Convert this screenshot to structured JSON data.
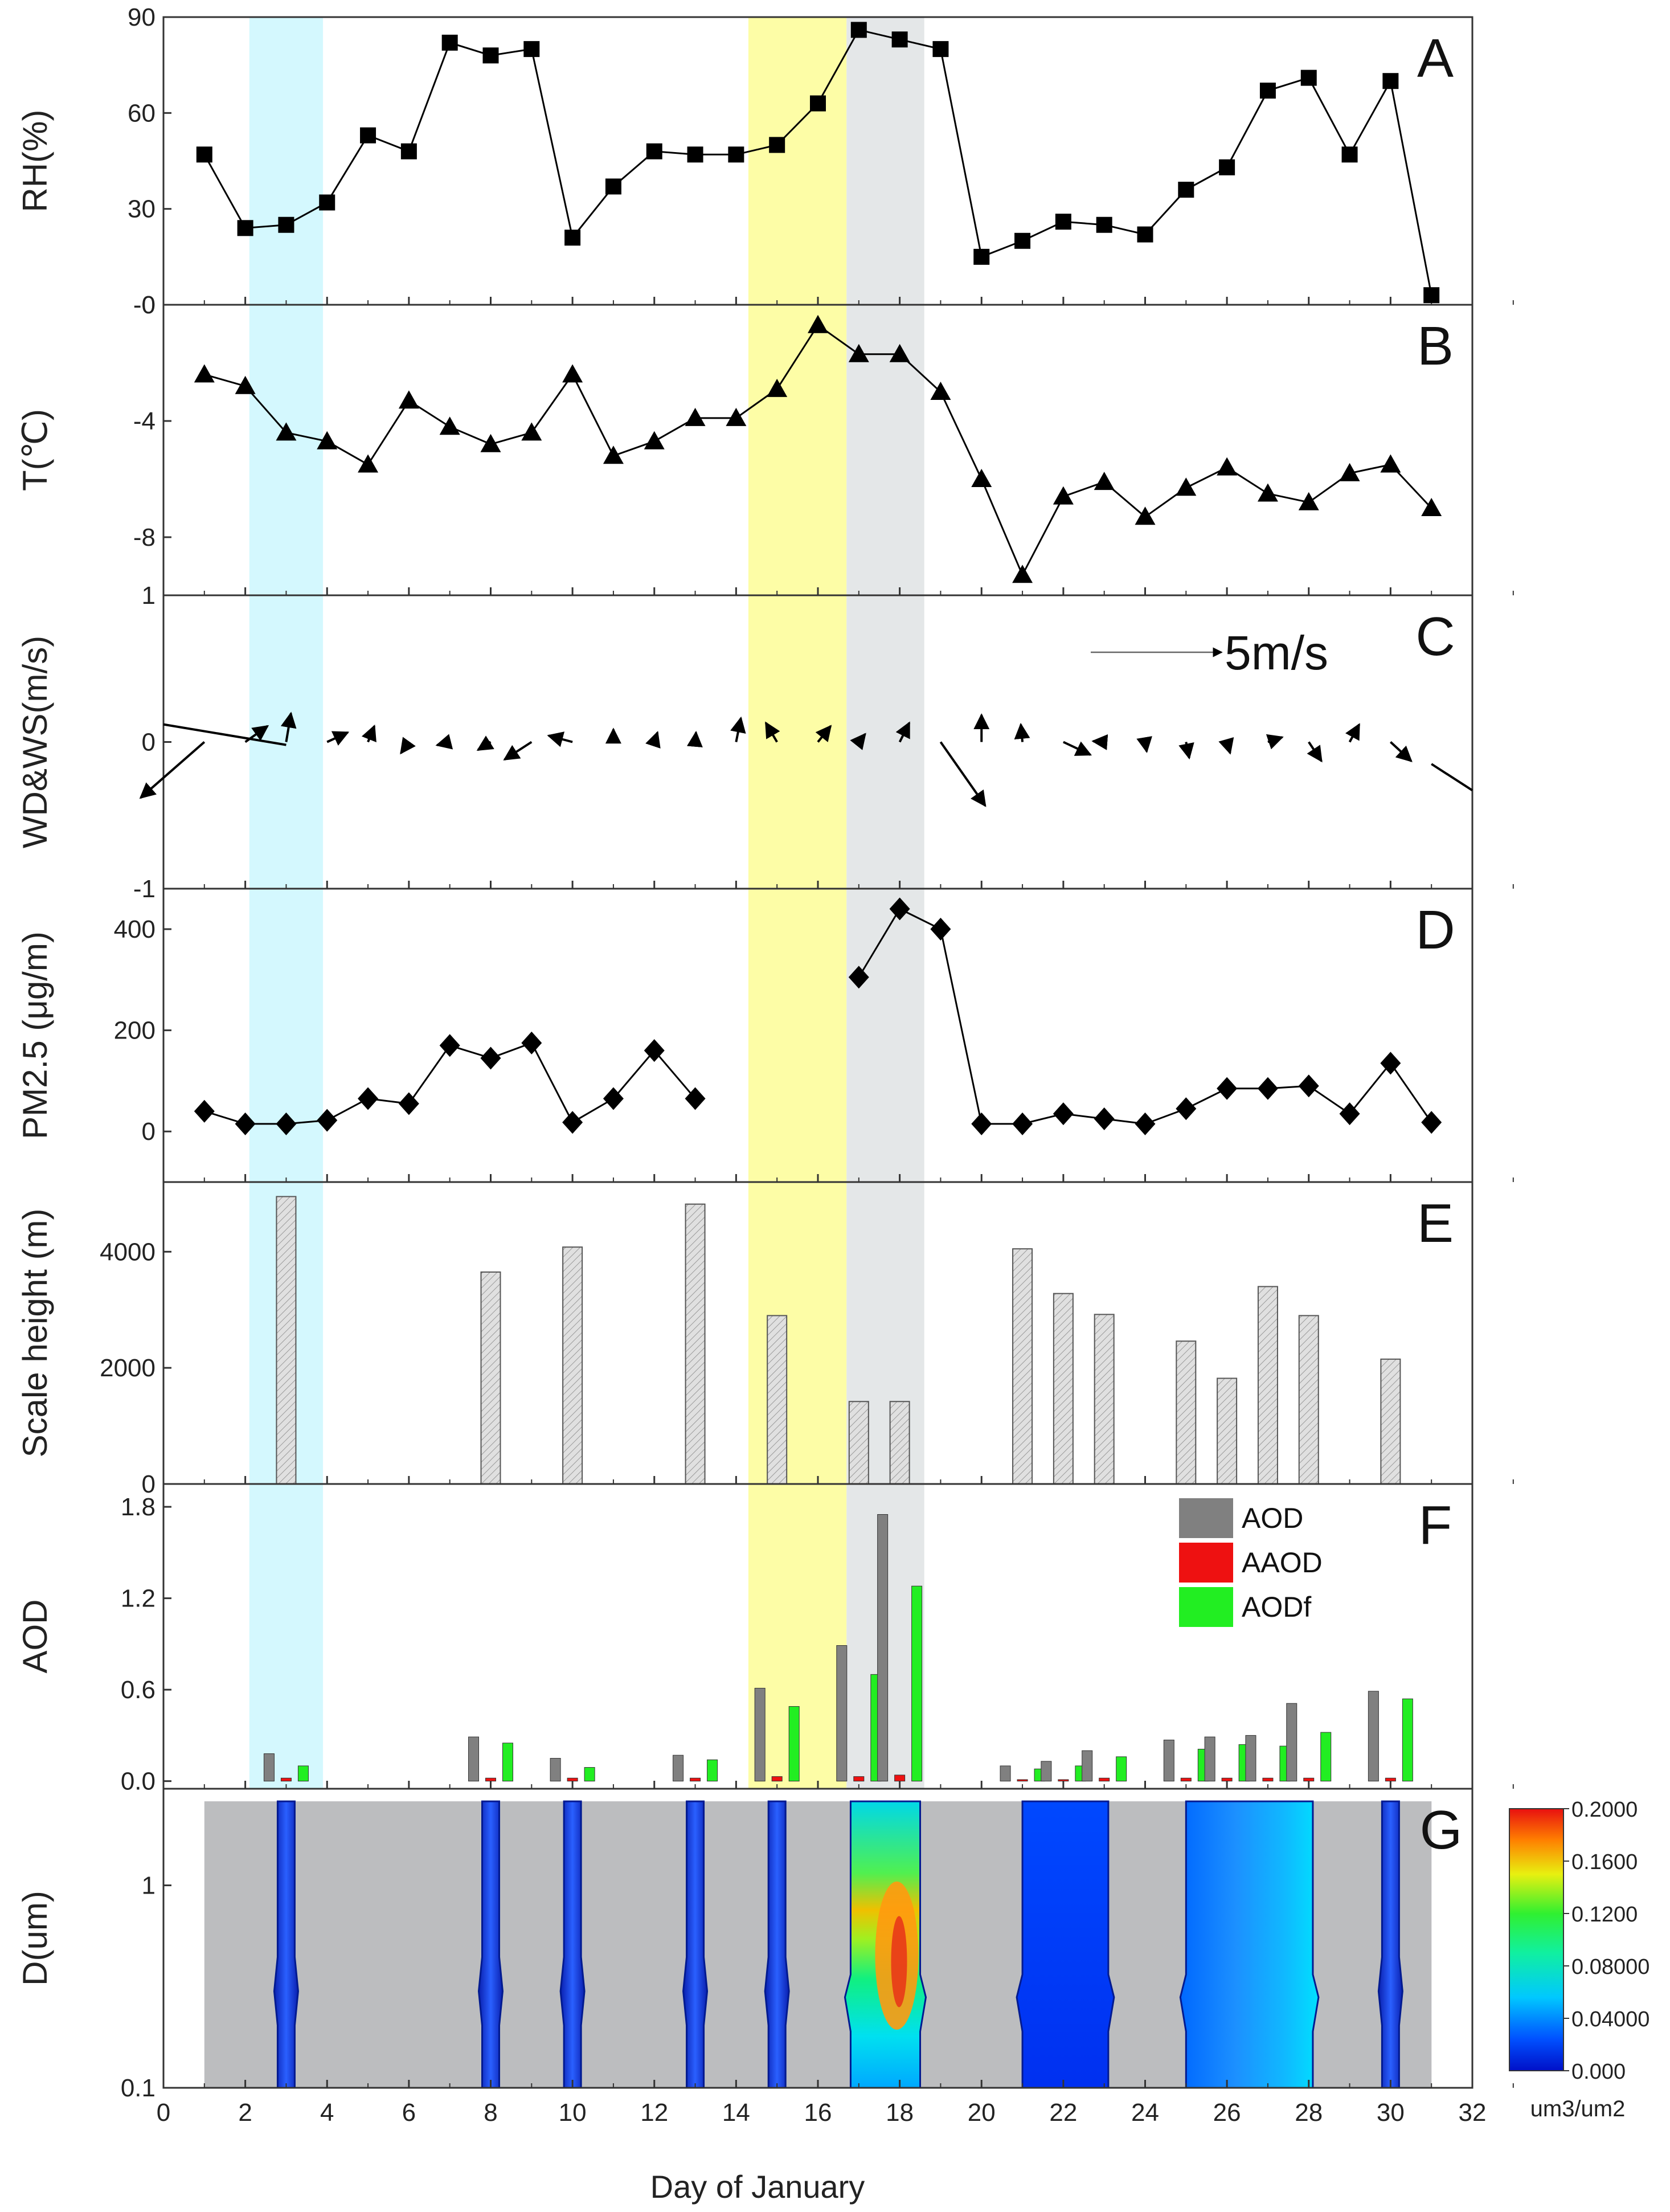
{
  "chart_data": {
    "type": "multi-panel",
    "x": {
      "label": "Day of January",
      "lim": [
        0,
        32
      ],
      "ticks": [
        0,
        2,
        4,
        6,
        8,
        10,
        12,
        14,
        16,
        18,
        20,
        22,
        24,
        26,
        28,
        30,
        32
      ]
    },
    "highlights": [
      {
        "name": "cyan-band",
        "from": 2.1,
        "to": 3.9,
        "color": "#d4f8fe"
      },
      {
        "name": "yellow-band",
        "from": 14.3,
        "to": 16.7,
        "color": "#fdfda6"
      },
      {
        "name": "grey-band",
        "from": 16.7,
        "to": 18.6,
        "color": "#e4e7e8"
      }
    ],
    "panels": [
      {
        "id": "A",
        "type": "line",
        "marker": "square",
        "ylabel": "RH(%)",
        "ylim": [
          0,
          90
        ],
        "yticks": [
          0,
          30,
          60,
          90
        ],
        "points": [
          [
            1,
            47
          ],
          [
            2,
            24
          ],
          [
            3,
            25
          ],
          [
            4,
            32
          ],
          [
            5,
            53
          ],
          [
            6,
            48
          ],
          [
            7,
            82
          ],
          [
            8,
            78
          ],
          [
            9,
            80
          ],
          [
            10,
            21
          ],
          [
            11,
            37
          ],
          [
            12,
            48
          ],
          [
            13,
            47
          ],
          [
            14,
            47
          ],
          [
            15,
            50
          ],
          [
            16,
            63
          ],
          [
            17,
            86
          ],
          [
            18,
            83
          ],
          [
            19,
            80
          ],
          [
            20,
            15
          ],
          [
            21,
            20
          ],
          [
            22,
            26
          ],
          [
            23,
            25
          ],
          [
            24,
            22
          ],
          [
            25,
            36
          ],
          [
            26,
            43
          ],
          [
            27,
            67
          ],
          [
            28,
            71
          ],
          [
            29,
            47
          ],
          [
            30,
            70
          ],
          [
            31,
            3
          ]
        ]
      },
      {
        "id": "B",
        "type": "line",
        "marker": "triangle",
        "ylabel": "T(℃)",
        "ylim": [
          -10,
          0
        ],
        "yticks": [
          0,
          -4,
          -8
        ],
        "ytick_labels": [
          "-0",
          "-4",
          "-8"
        ],
        "points": [
          [
            1,
            -2.4
          ],
          [
            2,
            -2.8
          ],
          [
            3,
            -4.4
          ],
          [
            4,
            -4.7
          ],
          [
            5,
            -5.5
          ],
          [
            6,
            -3.3
          ],
          [
            7,
            -4.2
          ],
          [
            8,
            -4.8
          ],
          [
            9,
            -4.4
          ],
          [
            10,
            -2.4
          ],
          [
            11,
            -5.2
          ],
          [
            12,
            -4.7
          ],
          [
            13,
            -3.9
          ],
          [
            14,
            -3.9
          ],
          [
            15,
            -2.9
          ],
          [
            16,
            -0.7
          ],
          [
            17,
            -1.7
          ],
          [
            18,
            -1.7
          ],
          [
            19,
            -3.0
          ],
          [
            20,
            -6.0
          ],
          [
            21,
            -9.3
          ],
          [
            22,
            -6.6
          ],
          [
            23,
            -6.1
          ],
          [
            24,
            -7.3
          ],
          [
            25,
            -6.3
          ],
          [
            26,
            -5.6
          ],
          [
            27,
            -6.5
          ],
          [
            28,
            -6.8
          ],
          [
            29,
            -5.8
          ],
          [
            30,
            -5.5
          ],
          [
            31,
            -7.0
          ]
        ]
      },
      {
        "id": "C",
        "type": "vector",
        "ylabel": "WD&WS(m/s)",
        "ylim": [
          -1,
          1
        ],
        "yticks": [
          1,
          0,
          -1
        ],
        "scale_label": "5m/s",
        "vectors": [
          [
            1,
            -4,
            -3.5
          ],
          [
            2,
            1.4,
            1.0
          ],
          [
            3,
            0.3,
            1.8
          ],
          [
            4,
            1.3,
            0.6
          ],
          [
            5,
            0.4,
            1.0
          ],
          [
            6,
            -0.5,
            -0.7
          ],
          [
            7,
            -0.8,
            -0.2
          ],
          [
            8,
            -0.8,
            -0.5
          ],
          [
            9,
            -1.7,
            -1.1
          ],
          [
            10,
            -1.5,
            0.4
          ],
          [
            11,
            0,
            0.8
          ],
          [
            12,
            0.2,
            0.6
          ],
          [
            13,
            0.05,
            0.6
          ],
          [
            14,
            0.3,
            1.5
          ],
          [
            15,
            -0.7,
            1.2
          ],
          [
            16,
            0.8,
            1.0
          ],
          [
            17,
            0.4,
            0.5
          ],
          [
            18,
            0.6,
            1.2
          ],
          [
            19,
            2.8,
            -4.0
          ],
          [
            20,
            0,
            1.7
          ],
          [
            21,
            -0.1,
            1.1
          ],
          [
            22,
            1.7,
            -0.8
          ],
          [
            23,
            -0.7,
            0.05
          ],
          [
            24,
            0.1,
            -0.6
          ],
          [
            25,
            0.2,
            -1.0
          ],
          [
            26,
            0.2,
            -0.7
          ],
          [
            27,
            0.9,
            0.3
          ],
          [
            28,
            0.8,
            -1.2
          ],
          [
            29,
            0.6,
            1.1
          ],
          [
            30,
            1.3,
            -1.2
          ]
        ],
        "extra_lines": [
          [
            0,
            0.12,
            3,
            -0.02
          ],
          [
            31,
            -0.15,
            32,
            -0.33
          ]
        ]
      },
      {
        "id": "D",
        "type": "line",
        "marker": "diamond",
        "ylabel": "PM2.5 (μg/m)",
        "ylim": [
          -100,
          480
        ],
        "yticks": [
          0,
          200,
          400
        ],
        "segments": [
          [
            [
              1,
              40
            ],
            [
              2,
              15
            ],
            [
              3,
              15
            ],
            [
              4,
              22
            ],
            [
              5,
              65
            ],
            [
              6,
              55
            ],
            [
              7,
              170
            ],
            [
              8,
              145
            ],
            [
              9,
              175
            ],
            [
              10,
              18
            ],
            [
              11,
              65
            ],
            [
              12,
              160
            ],
            [
              13,
              65
            ]
          ],
          [
            [
              17,
              305
            ],
            [
              18,
              440
            ],
            [
              19,
              400
            ],
            [
              20,
              15
            ],
            [
              21,
              15
            ],
            [
              22,
              35
            ],
            [
              23,
              25
            ],
            [
              24,
              15
            ],
            [
              25,
              45
            ],
            [
              26,
              85
            ],
            [
              27,
              85
            ],
            [
              28,
              90
            ],
            [
              29,
              35
            ],
            [
              30,
              135
            ],
            [
              31,
              18
            ]
          ]
        ]
      },
      {
        "id": "E",
        "type": "bar",
        "pattern": "hatched",
        "ylabel": "Scale height (m)",
        "ylim": [
          0,
          5200
        ],
        "yticks": [
          0,
          2000,
          4000
        ],
        "bars": [
          [
            3,
            4950
          ],
          [
            8,
            3650
          ],
          [
            10,
            4080
          ],
          [
            13,
            4820
          ],
          [
            15,
            2900
          ],
          [
            17,
            1420
          ],
          [
            18,
            1420
          ],
          [
            21,
            4050
          ],
          [
            22,
            3280
          ],
          [
            23,
            2920
          ],
          [
            25,
            2460
          ],
          [
            26,
            1820
          ],
          [
            27,
            3400
          ],
          [
            28,
            2900
          ],
          [
            30,
            2150
          ]
        ]
      },
      {
        "id": "F",
        "type": "grouped-bar",
        "ylabel": "AOD",
        "ylim": [
          -0.05,
          1.95
        ],
        "yticks": [
          0.0,
          0.6,
          1.2,
          1.8
        ],
        "ytick_labels": [
          "0.0",
          "0.6",
          "1.2",
          "1.8"
        ],
        "days": [
          3,
          8,
          10,
          13,
          15,
          17,
          18,
          21,
          22,
          23,
          25,
          26,
          27,
          28,
          30
        ],
        "series": [
          {
            "name": "AOD",
            "color": "#808080",
            "values": [
              0.18,
              0.29,
              0.15,
              0.17,
              0.61,
              0.89,
              1.75,
              0.1,
              0.13,
              0.2,
              0.27,
              0.29,
              0.3,
              0.51,
              0.59
            ]
          },
          {
            "name": "AAOD",
            "color": "#ee1111",
            "values": [
              0.02,
              0.02,
              0.02,
              0.02,
              0.03,
              0.03,
              0.04,
              0.01,
              0.01,
              0.02,
              0.02,
              0.02,
              0.02,
              0.02,
              0.02
            ]
          },
          {
            "name": "AODf",
            "color": "#22ee22",
            "values": [
              0.1,
              0.25,
              0.09,
              0.14,
              0.49,
              0.7,
              1.28,
              0.08,
              0.1,
              0.16,
              0.21,
              0.24,
              0.23,
              0.32,
              0.54
            ]
          }
        ]
      },
      {
        "id": "G",
        "type": "heatmap",
        "ylabel": "D(um)",
        "yscale": "log",
        "ylim": [
          0.1,
          3.0
        ],
        "yticks": [
          0.1,
          1
        ],
        "ytick_labels": [
          "0.1",
          "1"
        ],
        "background_range": [
          1,
          31
        ],
        "columns": [
          {
            "day": 3,
            "level": 0.004
          },
          {
            "day": 8,
            "level": 0.004
          },
          {
            "day": 10,
            "level": 0.004
          },
          {
            "day": 13,
            "level": 0.004
          },
          {
            "day": 15,
            "level": 0.012
          },
          {
            "from": 16.8,
            "to": 18.5,
            "level": 0.12
          },
          {
            "from": 21,
            "to": 23.1,
            "level": 0.015
          },
          {
            "from": 25,
            "to": 28.1,
            "level": 0.03
          },
          {
            "day": 30,
            "level": 0.008
          }
        ],
        "colorbar": {
          "min": 0.0,
          "max": 0.2,
          "tick_values": [
            0.2,
            0.16,
            0.12,
            0.08,
            0.04,
            0.0
          ],
          "tick_labels": [
            "0.2000",
            "0.1600",
            "0.1200",
            "0.08000",
            "0.04000",
            "0.000"
          ],
          "unit": "um3/um2"
        }
      }
    ]
  }
}
